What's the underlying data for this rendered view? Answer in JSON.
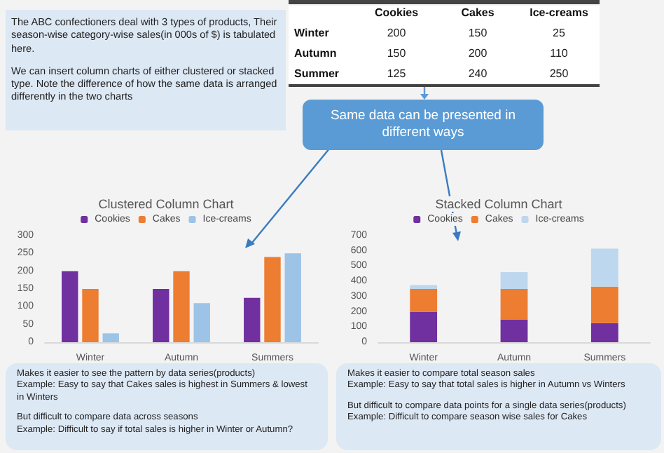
{
  "chart_data": [
    {
      "type": "other",
      "annotations": [
        "The ABC confectioners deal with 3 types of products, Their season-wise category-wise sales(in 000s of $) is tabulated here.",
        "We can insert column charts of either clustered or stacked type. Note the difference of how the same data is arranged differently in the two charts",
        "Same data can be presented in different ways"
      ]
    },
    {
      "type": "heatmap",
      "categories": [
        "Cookies",
        "Cakes",
        "Ice-creams"
      ],
      "y_categories": [
        "Winter",
        "Autumn",
        "Summer"
      ],
      "cells": [
        [
          200,
          150,
          25
        ],
        [
          150,
          200,
          110
        ],
        [
          125,
          240,
          250
        ]
      ],
      "data_labels": true
    },
    {
      "type": "bar",
      "title": "Clustered Column Chart",
      "categories": [
        "Winter",
        "Autumn",
        "Summers"
      ],
      "series": [
        {
          "name": "Cookies",
          "color": "#7030a0",
          "values": [
            200,
            150,
            125
          ]
        },
        {
          "name": "Cakes",
          "color": "#ed7d31",
          "values": [
            150,
            200,
            240
          ]
        },
        {
          "name": "Ice-creams",
          "color": "#9dc3e6",
          "values": [
            25,
            110,
            250
          ]
        }
      ],
      "ylim": [
        0,
        300
      ],
      "yticks": [
        0,
        50,
        100,
        150,
        200,
        250,
        300
      ],
      "grid": false,
      "legend": "top",
      "annotations": [
        "Makes it easier to see the pattern by data series(products)\nExample: Easy to say that Cakes sales is highest in Summers & lowest in Winters",
        "But difficult to compare data across seasons\nExample: Difficult to say if total sales is higher in Winter or Autumn?"
      ]
    },
    {
      "type": "bar",
      "title": "Stacked Column Chart",
      "categories": [
        "Winter",
        "Autumn",
        "Summers"
      ],
      "stacked": true,
      "series": [
        {
          "name": "Cookies",
          "color": "#7030a0",
          "values": [
            200,
            150,
            125
          ]
        },
        {
          "name": "Cakes",
          "color": "#ed7d31",
          "values": [
            150,
            200,
            240
          ]
        },
        {
          "name": "Ice-creams",
          "color": "#bdd7ee",
          "values": [
            25,
            110,
            250
          ]
        }
      ],
      "ylim": [
        0,
        700
      ],
      "yticks": [
        0,
        100,
        200,
        300,
        400,
        500,
        600,
        700
      ],
      "grid": false,
      "legend": "top",
      "annotations": [
        "Makes it easier to compare total season sales\nExample: Easy to say that total sales is higher in Autumn vs Winters",
        "But difficult to compare data points for a single data series(products)\nExample: Difficult to compare season wise sales for Cakes"
      ]
    }
  ]
}
